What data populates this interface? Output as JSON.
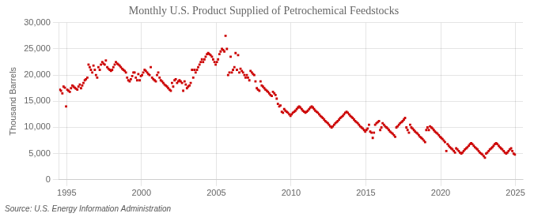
{
  "chart_data": {
    "type": "scatter",
    "title": "Monthly U.S. Product Supplied of Petrochemical Feedstocks",
    "ylabel": "Thousand Barrels",
    "annotation": "Source: U.S. Energy Information Administration",
    "color": "#cc0000",
    "marker": "square",
    "grid": true,
    "xlim": [
      1994.5,
      2025.5
    ],
    "ylim": [
      0,
      30000
    ],
    "xticks": [
      1995,
      2000,
      2005,
      2010,
      2015,
      2020,
      2025
    ],
    "yticks": [
      0,
      {
        "value": 5000,
        "label": "5,000"
      },
      {
        "value": 10000,
        "label": "10,000"
      },
      {
        "value": 15000,
        "label": "15,000"
      },
      {
        "value": 20000,
        "label": "20,000"
      },
      {
        "value": 25000,
        "label": "25,000"
      },
      {
        "value": 30000,
        "label": "30,000"
      }
    ],
    "x": [
      1994.54,
      1994.62,
      1994.71,
      1994.79,
      1994.88,
      1994.96,
      1995.04,
      1995.12,
      1995.21,
      1995.29,
      1995.38,
      1995.46,
      1995.54,
      1995.62,
      1995.71,
      1995.79,
      1995.88,
      1995.96,
      1996.04,
      1996.12,
      1996.21,
      1996.29,
      1996.38,
      1996.46,
      1996.54,
      1996.62,
      1996.71,
      1996.79,
      1996.88,
      1996.96,
      1997.04,
      1997.12,
      1997.21,
      1997.29,
      1997.38,
      1997.46,
      1997.54,
      1997.62,
      1997.71,
      1997.79,
      1997.88,
      1997.96,
      1998.04,
      1998.12,
      1998.21,
      1998.29,
      1998.38,
      1998.46,
      1998.54,
      1998.62,
      1998.71,
      1998.79,
      1998.88,
      1998.96,
      1999.04,
      1999.12,
      1999.21,
      1999.29,
      1999.38,
      1999.46,
      1999.54,
      1999.62,
      1999.71,
      1999.79,
      1999.88,
      1999.96,
      2000.04,
      2000.12,
      2000.21,
      2000.29,
      2000.38,
      2000.46,
      2000.54,
      2000.62,
      2000.71,
      2000.79,
      2000.88,
      2000.96,
      2001.04,
      2001.12,
      2001.21,
      2001.29,
      2001.38,
      2001.46,
      2001.54,
      2001.62,
      2001.71,
      2001.79,
      2001.88,
      2001.96,
      2002.04,
      2002.12,
      2002.21,
      2002.29,
      2002.38,
      2002.46,
      2002.54,
      2002.62,
      2002.71,
      2002.79,
      2002.88,
      2002.96,
      2003.04,
      2003.12,
      2003.21,
      2003.29,
      2003.38,
      2003.46,
      2003.54,
      2003.62,
      2003.71,
      2003.79,
      2003.88,
      2003.96,
      2004.04,
      2004.12,
      2004.21,
      2004.29,
      2004.38,
      2004.46,
      2004.54,
      2004.62,
      2004.71,
      2004.79,
      2004.88,
      2004.96,
      2005.04,
      2005.12,
      2005.21,
      2005.29,
      2005.38,
      2005.46,
      2005.54,
      2005.62,
      2005.71,
      2005.79,
      2005.88,
      2005.96,
      2006.04,
      2006.12,
      2006.21,
      2006.29,
      2006.38,
      2006.46,
      2006.54,
      2006.62,
      2006.71,
      2006.79,
      2006.88,
      2006.96,
      2007.04,
      2007.12,
      2007.21,
      2007.29,
      2007.38,
      2007.46,
      2007.54,
      2007.62,
      2007.71,
      2007.79,
      2007.88,
      2007.96,
      2008.04,
      2008.12,
      2008.21,
      2008.29,
      2008.38,
      2008.46,
      2008.54,
      2008.62,
      2008.71,
      2008.79,
      2008.88,
      2008.96,
      2009.04,
      2009.12,
      2009.21,
      2009.29,
      2009.38,
      2009.46,
      2009.54,
      2009.62,
      2009.71,
      2009.79,
      2009.88,
      2009.96,
      2010.04,
      2010.12,
      2010.21,
      2010.29,
      2010.38,
      2010.46,
      2010.54,
      2010.62,
      2010.71,
      2010.79,
      2010.88,
      2010.96,
      2011.04,
      2011.12,
      2011.21,
      2011.29,
      2011.38,
      2011.46,
      2011.54,
      2011.62,
      2011.71,
      2011.79,
      2011.88,
      2011.96,
      2012.04,
      2012.12,
      2012.21,
      2012.29,
      2012.38,
      2012.46,
      2012.54,
      2012.62,
      2012.71,
      2012.79,
      2012.88,
      2012.96,
      2013.04,
      2013.12,
      2013.21,
      2013.29,
      2013.38,
      2013.46,
      2013.54,
      2013.62,
      2013.71,
      2013.79,
      2013.88,
      2013.96,
      2014.04,
      2014.12,
      2014.21,
      2014.29,
      2014.38,
      2014.46,
      2014.54,
      2014.62,
      2014.71,
      2014.79,
      2014.88,
      2014.96,
      2015.04,
      2015.12,
      2015.21,
      2015.29,
      2015.38,
      2015.46,
      2015.54,
      2015.62,
      2015.71,
      2015.79,
      2015.88,
      2015.96,
      2016.04,
      2016.12,
      2016.21,
      2016.29,
      2016.38,
      2016.46,
      2016.54,
      2016.62,
      2016.71,
      2016.79,
      2016.88,
      2016.96,
      2017.04,
      2017.12,
      2017.21,
      2017.29,
      2017.38,
      2017.46,
      2017.54,
      2017.62,
      2017.71,
      2017.79,
      2017.88,
      2017.96,
      2018.04,
      2018.12,
      2018.21,
      2018.29,
      2018.38,
      2018.46,
      2018.54,
      2018.62,
      2018.71,
      2018.79,
      2018.88,
      2018.96,
      2019.04,
      2019.12,
      2019.21,
      2019.29,
      2019.38,
      2019.46,
      2019.54,
      2019.62,
      2019.71,
      2019.79,
      2019.88,
      2019.96,
      2020.04,
      2020.12,
      2020.21,
      2020.29,
      2020.38,
      2020.46,
      2020.54,
      2020.62,
      2020.71,
      2020.79,
      2020.88,
      2020.96,
      2021.04,
      2021.12,
      2021.21,
      2021.29,
      2021.38,
      2021.46,
      2021.54,
      2021.62,
      2021.71,
      2021.79,
      2021.88,
      2021.96,
      2022.04,
      2022.12,
      2022.21,
      2022.29,
      2022.38,
      2022.46,
      2022.54,
      2022.62,
      2022.71,
      2022.79,
      2022.88,
      2022.96,
      2023.04,
      2023.12,
      2023.21,
      2023.29,
      2023.38,
      2023.46,
      2023.54,
      2023.62,
      2023.71,
      2023.79,
      2023.88,
      2023.96,
      2024.04,
      2024.12,
      2024.21,
      2024.29,
      2024.38,
      2024.46,
      2024.54,
      2024.62,
      2024.71,
      2024.79,
      2024.88,
      2024.96
    ],
    "values": [
      17200,
      17000,
      16500,
      17800,
      17600,
      14000,
      17200,
      17000,
      16800,
      17500,
      18000,
      17800,
      17600,
      17400,
      17200,
      17800,
      18200,
      17500,
      18000,
      18500,
      19000,
      19200,
      19500,
      22000,
      21500,
      21000,
      20500,
      21800,
      21000,
      20000,
      19500,
      21500,
      21000,
      22000,
      22500,
      22200,
      22000,
      22800,
      21500,
      21200,
      21000,
      20800,
      21000,
      21500,
      22000,
      22500,
      22200,
      22000,
      21800,
      21500,
      21200,
      21000,
      20800,
      20500,
      19500,
      19000,
      18800,
      19200,
      19800,
      20500,
      20500,
      19500,
      19000,
      20200,
      19000,
      19800,
      20000,
      20500,
      21000,
      20800,
      20500,
      20200,
      20000,
      21500,
      19500,
      19200,
      19000,
      18800,
      20000,
      20500,
      19500,
      19000,
      18800,
      18500,
      18200,
      18000,
      17800,
      17500,
      17200,
      17000,
      18500,
      17800,
      19000,
      19200,
      18500,
      18800,
      19000,
      18800,
      18500,
      17000,
      18800,
      18200,
      17500,
      17800,
      18000,
      18500,
      21000,
      19500,
      21000,
      20500,
      21000,
      21500,
      22000,
      22500,
      23000,
      22500,
      23000,
      23500,
      24000,
      24200,
      24000,
      23800,
      23500,
      23000,
      22500,
      22000,
      22500,
      23000,
      24000,
      24500,
      25000,
      24800,
      24500,
      27500,
      25000,
      20000,
      20500,
      23500,
      20500,
      21000,
      21500,
      24200,
      21000,
      23800,
      20500,
      21200,
      20800,
      20500,
      20000,
      19500,
      20000,
      19500,
      19000,
      20800,
      20500,
      20200,
      20000,
      18800,
      17500,
      17200,
      17000,
      18800,
      18000,
      17800,
      17500,
      17200,
      17000,
      16800,
      16500,
      16200,
      16000,
      16800,
      16500,
      16200,
      15500,
      14500,
      14000,
      14200,
      13000,
      12800,
      13500,
      13200,
      13000,
      12800,
      12500,
      12200,
      12500,
      12800,
      13000,
      13200,
      13500,
      13800,
      14000,
      13800,
      13500,
      13200,
      13000,
      12800,
      13000,
      13200,
      13500,
      13800,
      14000,
      13800,
      13500,
      13200,
      13000,
      12800,
      12500,
      12200,
      12000,
      11800,
      11500,
      11200,
      11000,
      10800,
      10500,
      10200,
      10000,
      10200,
      10500,
      10800,
      11000,
      11200,
      11500,
      11800,
      12000,
      12200,
      12500,
      12800,
      13000,
      12800,
      12500,
      12200,
      12000,
      11800,
      11500,
      11200,
      11000,
      10800,
      10500,
      10200,
      10000,
      9800,
      9500,
      9200,
      9500,
      9800,
      10500,
      9200,
      9000,
      8000,
      9000,
      10500,
      10800,
      11000,
      11200,
      9500,
      10000,
      10800,
      10500,
      10200,
      10000,
      9800,
      9500,
      9200,
      9000,
      8800,
      8500,
      8200,
      10000,
      10200,
      10500,
      10800,
      11000,
      11200,
      11500,
      11800,
      10000,
      9500,
      9000,
      10500,
      10000,
      9800,
      9500,
      9200,
      9000,
      8800,
      8500,
      8200,
      8000,
      7800,
      7500,
      7200,
      9500,
      10000,
      9500,
      10200,
      10000,
      9800,
      9500,
      9200,
      9000,
      8800,
      8500,
      8200,
      8000,
      7800,
      7500,
      7200,
      5500,
      6800,
      6500,
      6200,
      6000,
      5800,
      5500,
      5200,
      6000,
      5800,
      5500,
      5200,
      5000,
      5200,
      5500,
      5800,
      6000,
      6200,
      6500,
      6800,
      7000,
      6800,
      6500,
      6200,
      6000,
      5800,
      5500,
      5200,
      5000,
      4800,
      4500,
      4200,
      5000,
      5200,
      5500,
      5800,
      6000,
      6200,
      6500,
      6800,
      7000,
      6800,
      6500,
      6200,
      6000,
      5800,
      5500,
      5200,
      5000,
      5200,
      5500,
      5800,
      6000,
      5500,
      5000,
      4800
    ]
  }
}
